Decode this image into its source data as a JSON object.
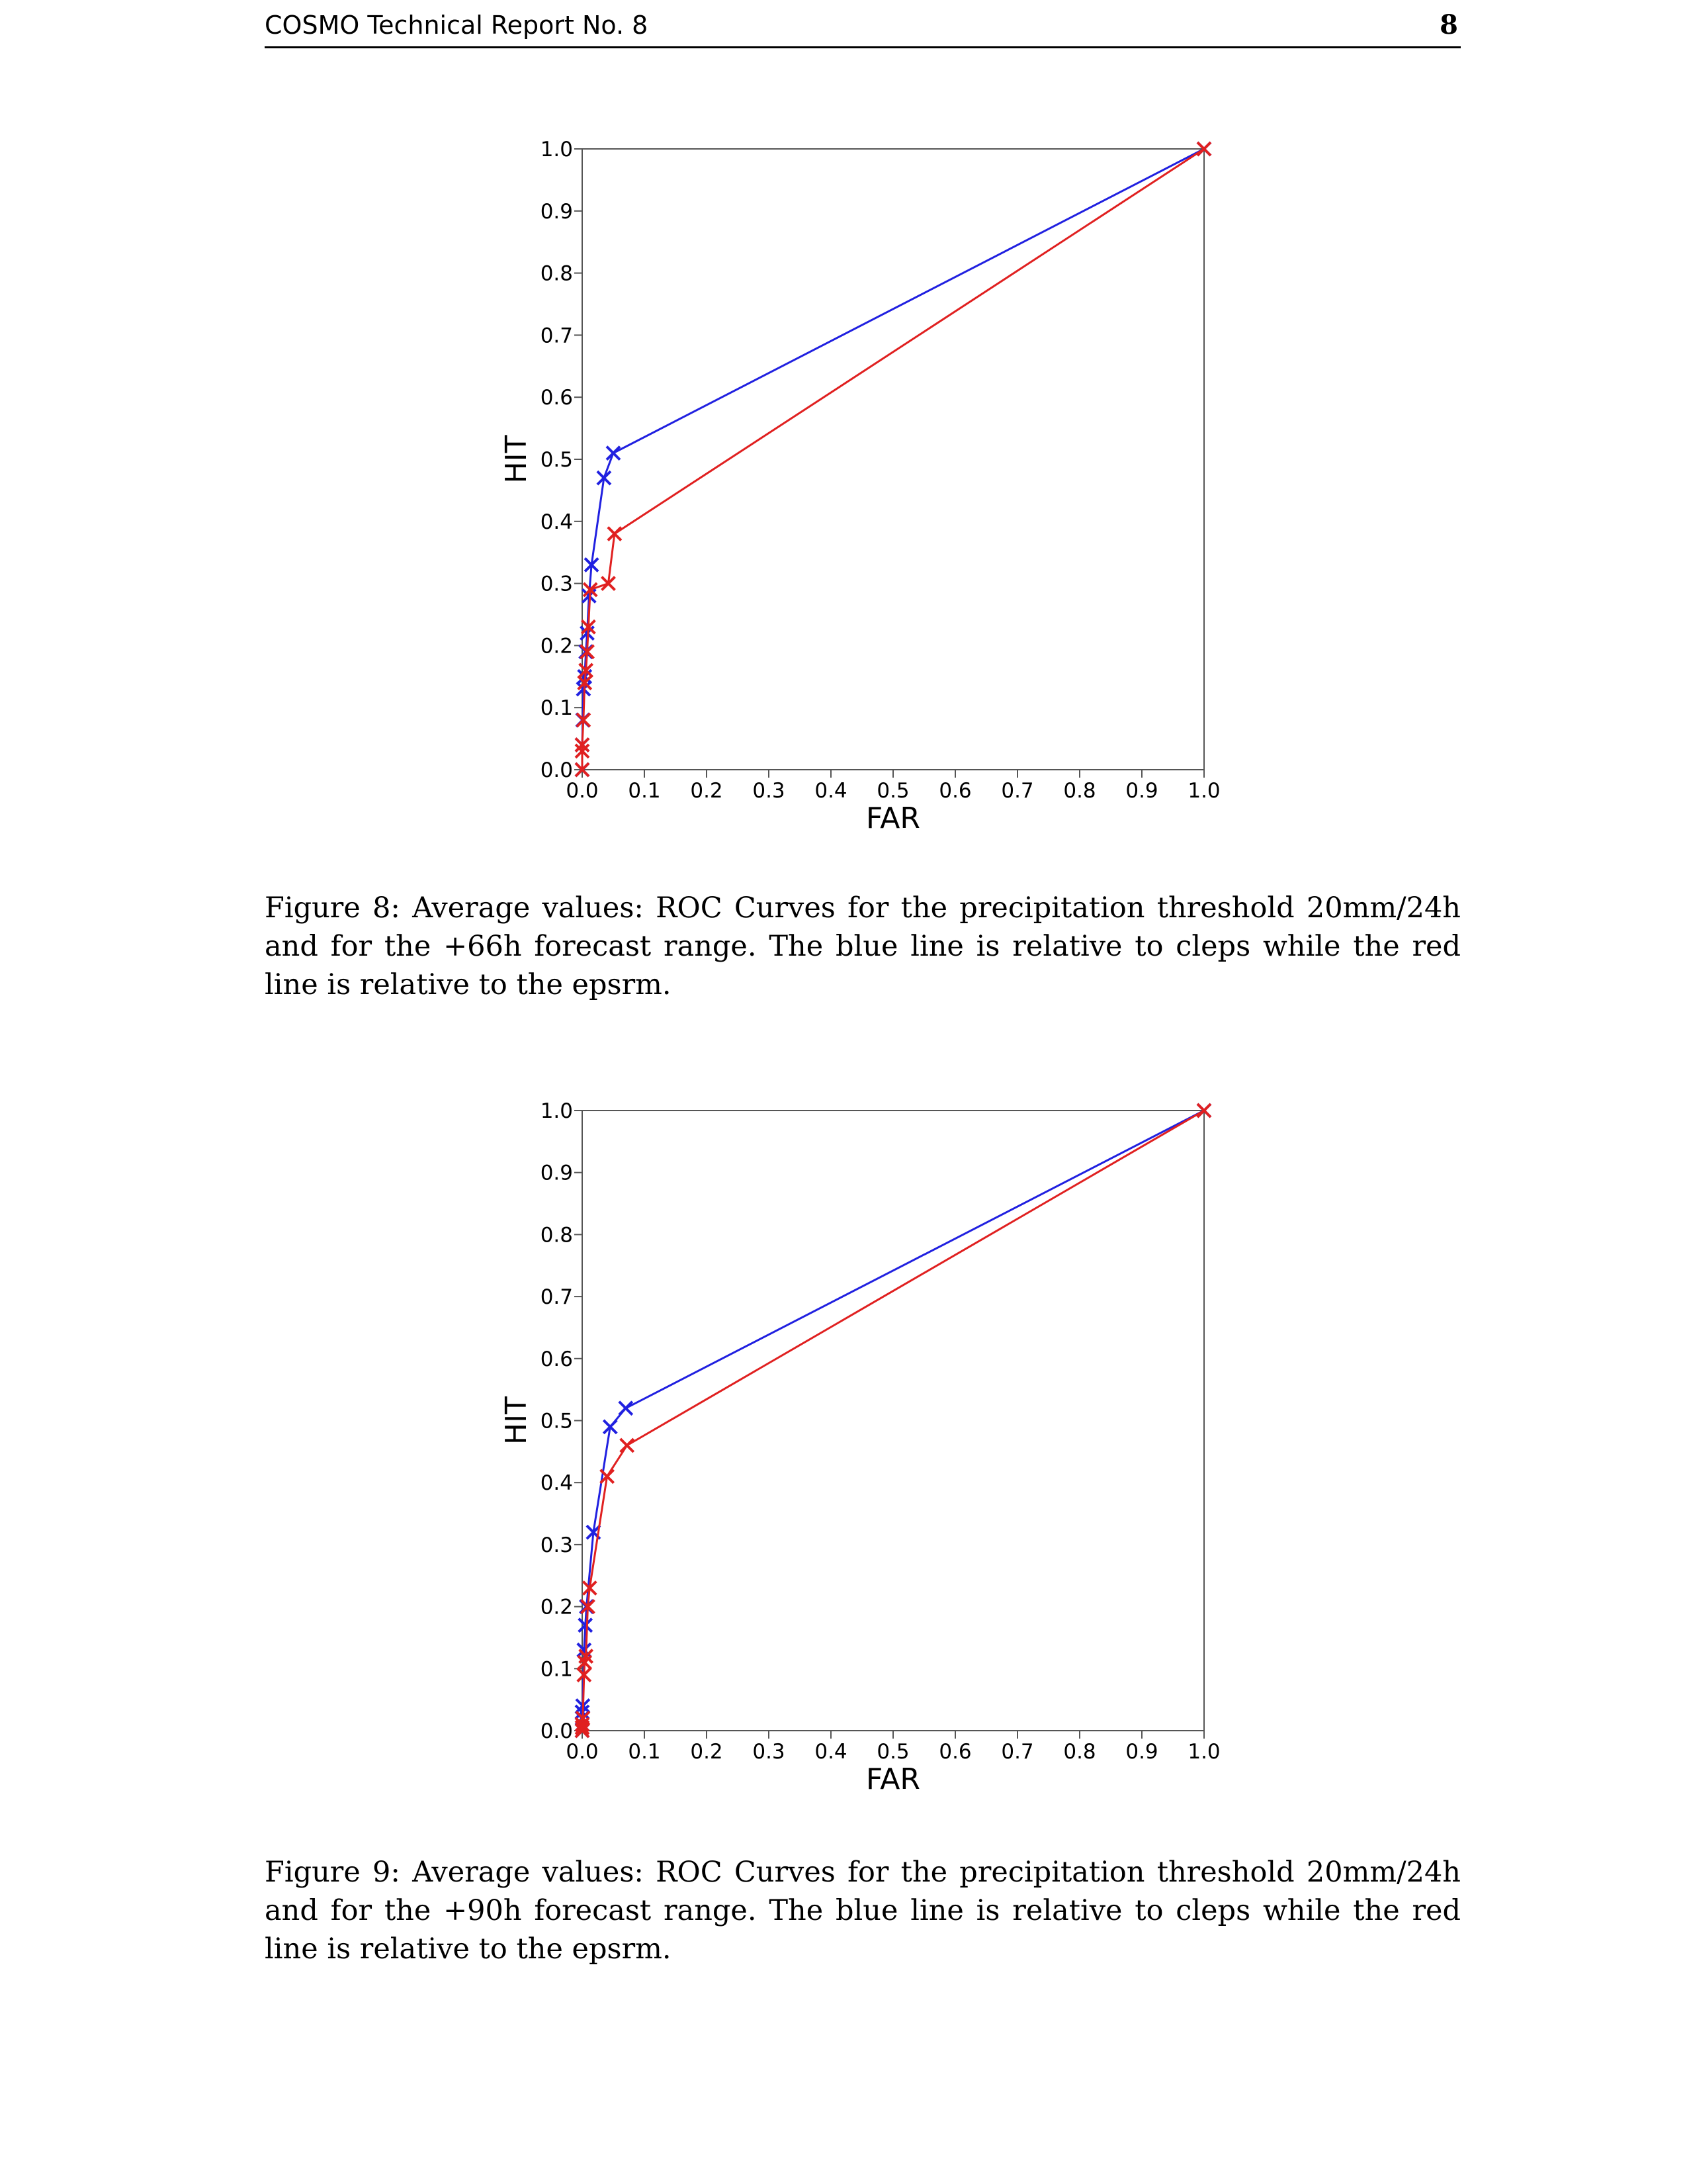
{
  "header": {
    "title": "COSMO Technical Report No. 8",
    "page_number": "8"
  },
  "colors": {
    "blue": "#2020e0",
    "red": "#e02020"
  },
  "figures": [
    {
      "caption": "Figure 8: Average values: ROC Curves for the precipitation threshold 20mm/24h and for the +66h forecast range. The blue line is relative to cleps while the red line is relative to the epsrm."
    },
    {
      "caption": "Figure 9: Average values: ROC Curves for the precipitation threshold 20mm/24h and for the +90h forecast range. The blue line is relative to cleps while the red line is relative to the epsrm."
    }
  ],
  "chart_data": [
    {
      "type": "line",
      "xlabel": "FAR",
      "ylabel": "HIT",
      "xlim": [
        0,
        1
      ],
      "ylim": [
        0,
        1
      ],
      "x_ticks": [
        "0.0",
        "0.1",
        "0.2",
        "0.3",
        "0.4",
        "0.5",
        "0.6",
        "0.7",
        "0.8",
        "0.9",
        "1.0"
      ],
      "y_ticks": [
        "0.0",
        "0.1",
        "0.2",
        "0.3",
        "0.4",
        "0.5",
        "0.6",
        "0.7",
        "0.8",
        "0.9",
        "1.0"
      ],
      "grid": false,
      "series": [
        {
          "color": "#2020e0",
          "x": [
            0.0,
            0.0,
            0.001,
            0.002,
            0.004,
            0.006,
            0.008,
            0.011,
            0.015,
            0.035,
            0.05,
            1.0
          ],
          "y": [
            0.0,
            0.04,
            0.08,
            0.13,
            0.15,
            0.19,
            0.22,
            0.28,
            0.33,
            0.47,
            0.51,
            1.0
          ]
        },
        {
          "color": "#e02020",
          "x": [
            0.0,
            0.0,
            0.0,
            0.002,
            0.004,
            0.006,
            0.008,
            0.01,
            0.013,
            0.042,
            0.052,
            1.0
          ],
          "y": [
            0.0,
            0.03,
            0.04,
            0.08,
            0.14,
            0.16,
            0.19,
            0.23,
            0.29,
            0.3,
            0.38,
            1.0
          ]
        }
      ]
    },
    {
      "type": "line",
      "xlabel": "FAR",
      "ylabel": "HIT",
      "xlim": [
        0,
        1
      ],
      "ylim": [
        0,
        1
      ],
      "x_ticks": [
        "0.0",
        "0.1",
        "0.2",
        "0.3",
        "0.4",
        "0.5",
        "0.6",
        "0.7",
        "0.8",
        "0.9",
        "1.0"
      ],
      "y_ticks": [
        "0.0",
        "0.1",
        "0.2",
        "0.3",
        "0.4",
        "0.5",
        "0.6",
        "0.7",
        "0.8",
        "0.9",
        "1.0"
      ],
      "grid": false,
      "series": [
        {
          "color": "#2020e0",
          "x": [
            0.0,
            0.0,
            0.0,
            0.0,
            0.001,
            0.003,
            0.005,
            0.007,
            0.018,
            0.045,
            0.07,
            1.0
          ],
          "y": [
            0.0,
            0.01,
            0.02,
            0.03,
            0.04,
            0.13,
            0.17,
            0.2,
            0.32,
            0.49,
            0.52,
            1.0
          ]
        },
        {
          "color": "#e02020",
          "x": [
            0.0,
            0.0,
            0.0,
            0.001,
            0.003,
            0.004,
            0.006,
            0.009,
            0.012,
            0.04,
            0.072,
            1.0
          ],
          "y": [
            0.0,
            0.005,
            0.01,
            0.02,
            0.09,
            0.11,
            0.12,
            0.2,
            0.23,
            0.41,
            0.46,
            1.0
          ]
        }
      ]
    }
  ]
}
